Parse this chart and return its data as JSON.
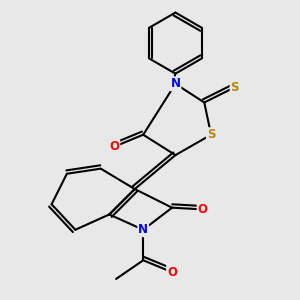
{
  "background_color": "#e8e8e8",
  "atom_colors": {
    "N": "#0000ff",
    "O": "#ff0000",
    "S": "#b8860b",
    "C": "#000000"
  },
  "bond_color": "#000000",
  "bond_width": 1.5,
  "dbo": 0.12,
  "figsize": [
    3.0,
    3.0
  ],
  "dpi": 100
}
